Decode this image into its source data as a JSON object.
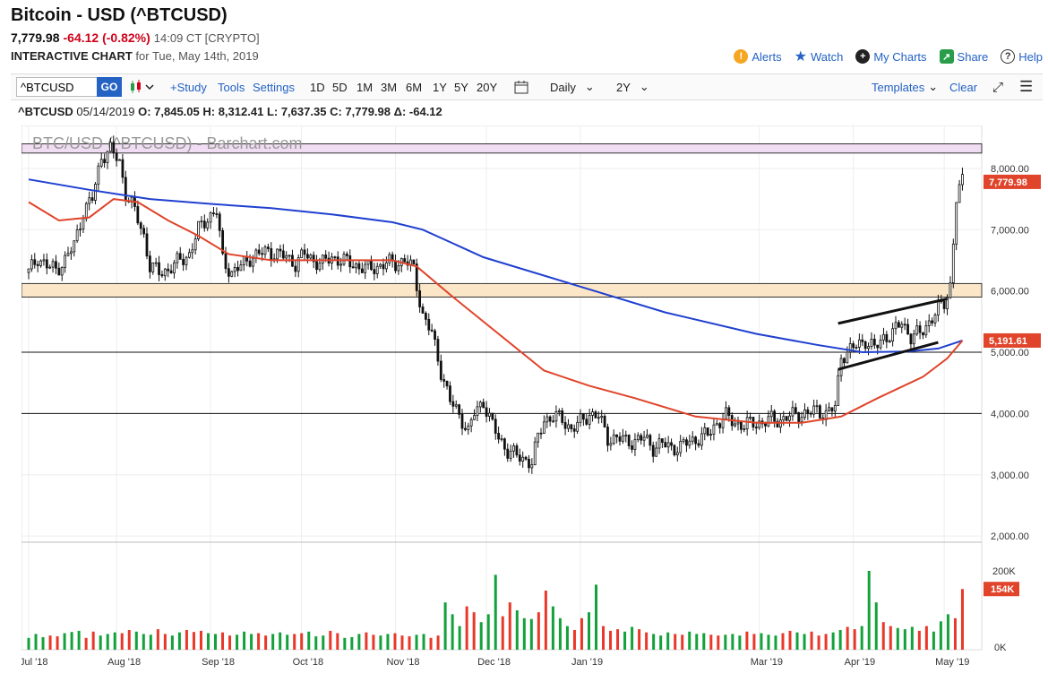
{
  "header": {
    "title": "Bitcoin - USD (^BTCUSD)",
    "last": "7,779.98",
    "change": "-64.12 (-0.82%)",
    "time": "14:09 CT [CRYPTO]",
    "interactive_label": "INTERACTIVE CHART",
    "date_text": "for Tue, May 14th, 2019",
    "links": [
      "Alerts",
      "Watch",
      "My Charts",
      "Share",
      "Help"
    ]
  },
  "toolbar": {
    "symbol_value": "^BTCUSD",
    "go_label": "GO",
    "study_label": "+Study",
    "tools_label": "Tools",
    "settings_label": "Settings",
    "periods": [
      "1D",
      "5D",
      "1M",
      "3M",
      "6M",
      "1Y",
      "5Y",
      "20Y"
    ],
    "interval": "Daily",
    "range": "2Y",
    "templates_label": "Templates",
    "clear_label": "Clear"
  },
  "ohlc": {
    "symbol": "^BTCUSD",
    "date": "05/14/2019",
    "o": "O: 7,845.05",
    "h": "H: 8,312.41",
    "l": "L: 7,637.35",
    "c": "C: 7,779.98",
    "d": "Δ: -64.12"
  },
  "chart_data": {
    "type": "candlestick",
    "watermark": "BTC/USD (^BTCUSD) - Barchart.com",
    "y_ticks": [
      2000,
      3000,
      4000,
      5000,
      6000,
      7000,
      8000
    ],
    "y_tick_labels": [
      "2,000.00",
      "3,000.00",
      "4,000.00",
      "5,000.00",
      "6,000.00",
      "7,000.00",
      "8,000.00"
    ],
    "ylim": [
      1900,
      8700
    ],
    "x_labels": [
      "Jul '18",
      "Aug '18",
      "Sep '18",
      "Oct '18",
      "Nov '18",
      "Dec '18",
      "Jan '19",
      "Mar '19",
      "Apr '19",
      "May '19"
    ],
    "x_label_positions": [
      0,
      29,
      60,
      90,
      121,
      151,
      182,
      241,
      272,
      302
    ],
    "last_price_label": "7,779.98",
    "ma_label": "5,191.61",
    "volume_labels": [
      "200K",
      "154K",
      "0K"
    ],
    "volume_max": 250000,
    "price_path": [
      [
        0,
        6300
      ],
      [
        3,
        6550
      ],
      [
        6,
        6400
      ],
      [
        9,
        6350
      ],
      [
        12,
        6500
      ],
      [
        15,
        6750
      ],
      [
        18,
        7300
      ],
      [
        21,
        7500
      ],
      [
        24,
        8200
      ],
      [
        27,
        8300
      ],
      [
        30,
        8100
      ],
      [
        32,
        7600
      ],
      [
        35,
        7300
      ],
      [
        38,
        6900
      ],
      [
        40,
        6400
      ],
      [
        43,
        6300
      ],
      [
        46,
        6350
      ],
      [
        50,
        6500
      ],
      [
        53,
        6600
      ],
      [
        56,
        7000
      ],
      [
        59,
        7200
      ],
      [
        62,
        7300
      ],
      [
        64,
        6500
      ],
      [
        67,
        6300
      ],
      [
        70,
        6400
      ],
      [
        73,
        6550
      ],
      [
        76,
        6600
      ],
      [
        79,
        6650
      ],
      [
        82,
        6600
      ],
      [
        85,
        6550
      ],
      [
        88,
        6450
      ],
      [
        91,
        6600
      ],
      [
        94,
        6500
      ],
      [
        97,
        6450
      ],
      [
        100,
        6550
      ],
      [
        103,
        6500
      ],
      [
        106,
        6450
      ],
      [
        109,
        6400
      ],
      [
        112,
        6350
      ],
      [
        115,
        6400
      ],
      [
        118,
        6450
      ],
      [
        121,
        6450
      ],
      [
        124,
        6500
      ],
      [
        127,
        6350
      ],
      [
        130,
        5600
      ],
      [
        133,
        5300
      ],
      [
        136,
        4700
      ],
      [
        139,
        4200
      ],
      [
        141,
        4050
      ],
      [
        143,
        3900
      ],
      [
        145,
        3700
      ],
      [
        147,
        4000
      ],
      [
        150,
        4200
      ],
      [
        153,
        3800
      ],
      [
        155,
        3600
      ],
      [
        158,
        3400
      ],
      [
        161,
        3300
      ],
      [
        164,
        3250
      ],
      [
        166,
        3200
      ],
      [
        168,
        3600
      ],
      [
        170,
        3900
      ],
      [
        173,
        3950
      ],
      [
        176,
        3900
      ],
      [
        179,
        3750
      ],
      [
        182,
        3850
      ],
      [
        185,
        4000
      ],
      [
        188,
        3950
      ],
      [
        191,
        3600
      ],
      [
        194,
        3600
      ],
      [
        197,
        3550
      ],
      [
        200,
        3550
      ],
      [
        203,
        3600
      ],
      [
        206,
        3450
      ],
      [
        209,
        3500
      ],
      [
        212,
        3450
      ],
      [
        215,
        3450
      ],
      [
        218,
        3550
      ],
      [
        221,
        3600
      ],
      [
        224,
        3650
      ],
      [
        227,
        3850
      ],
      [
        230,
        3950
      ],
      [
        233,
        3850
      ],
      [
        236,
        3800
      ],
      [
        239,
        3850
      ],
      [
        242,
        3850
      ],
      [
        245,
        3900
      ],
      [
        248,
        3900
      ],
      [
        251,
        3950
      ],
      [
        254,
        4000
      ],
      [
        257,
        4000
      ],
      [
        260,
        4050
      ],
      [
        263,
        4000
      ],
      [
        266,
        4100
      ],
      [
        268,
        4950
      ],
      [
        270,
        5000
      ],
      [
        273,
        5100
      ],
      [
        276,
        5200
      ],
      [
        279,
        5050
      ],
      [
        282,
        5250
      ],
      [
        285,
        5300
      ],
      [
        288,
        5500
      ],
      [
        291,
        5250
      ],
      [
        294,
        5300
      ],
      [
        297,
        5500
      ],
      [
        300,
        5700
      ],
      [
        302,
        5800
      ],
      [
        304,
        6100
      ],
      [
        306,
        7500
      ],
      [
        308,
        7780
      ]
    ],
    "ma_blue": [
      [
        0,
        7820
      ],
      [
        20,
        7650
      ],
      [
        40,
        7500
      ],
      [
        60,
        7420
      ],
      [
        80,
        7350
      ],
      [
        100,
        7250
      ],
      [
        120,
        7120
      ],
      [
        130,
        7000
      ],
      [
        150,
        6550
      ],
      [
        180,
        6100
      ],
      [
        210,
        5650
      ],
      [
        240,
        5300
      ],
      [
        260,
        5120
      ],
      [
        275,
        5000
      ],
      [
        290,
        5010
      ],
      [
        300,
        5060
      ],
      [
        308,
        5190
      ]
    ],
    "ma_red": [
      [
        0,
        7450
      ],
      [
        10,
        7150
      ],
      [
        20,
        7200
      ],
      [
        28,
        7500
      ],
      [
        36,
        7450
      ],
      [
        46,
        7150
      ],
      [
        56,
        6900
      ],
      [
        66,
        6600
      ],
      [
        80,
        6500
      ],
      [
        100,
        6500
      ],
      [
        120,
        6500
      ],
      [
        128,
        6400
      ],
      [
        140,
        5900
      ],
      [
        155,
        5300
      ],
      [
        170,
        4700
      ],
      [
        185,
        4450
      ],
      [
        200,
        4250
      ],
      [
        220,
        3950
      ],
      [
        240,
        3850
      ],
      [
        255,
        3850
      ],
      [
        268,
        3950
      ],
      [
        280,
        4250
      ],
      [
        295,
        4600
      ],
      [
        303,
        4900
      ],
      [
        308,
        5191
      ]
    ],
    "volume_values": [
      30000,
      40000,
      32000,
      36000,
      34000,
      42000,
      45000,
      48000,
      30000,
      46000,
      36000,
      40000,
      44000,
      42000,
      50000,
      46000,
      40000,
      38000,
      52000,
      40000,
      36000,
      44000,
      50000,
      45000,
      48000,
      42000,
      40000,
      44000,
      36000,
      38000,
      46000,
      40000,
      42000,
      36000,
      40000,
      44000,
      38000,
      40000,
      42000,
      46000,
      34000,
      36000,
      48000,
      42000,
      30000,
      32000,
      40000,
      44000,
      38000,
      36000,
      40000,
      42000,
      36000,
      34000,
      38000,
      40000,
      30000,
      36000,
      120000,
      90000,
      60000,
      110000,
      95000,
      70000,
      90000,
      190000,
      85000,
      120000,
      100000,
      80000,
      78000,
      95000,
      150000,
      110000,
      80000,
      60000,
      50000,
      80000,
      95000,
      165000,
      60000,
      48000,
      52000,
      46000,
      58000,
      52000,
      44000,
      40000,
      36000,
      44000,
      40000,
      38000,
      46000,
      40000,
      42000,
      38000,
      36000,
      38000,
      40000,
      36000,
      46000,
      40000,
      42000,
      38000,
      36000,
      42000,
      48000,
      44000,
      40000,
      46000,
      36000,
      40000,
      44000,
      50000,
      58000,
      52000,
      60000,
      200000,
      120000,
      70000,
      60000,
      55000,
      52000,
      58000,
      48000,
      60000,
      46000,
      72000,
      90000,
      80000,
      154000
    ]
  }
}
